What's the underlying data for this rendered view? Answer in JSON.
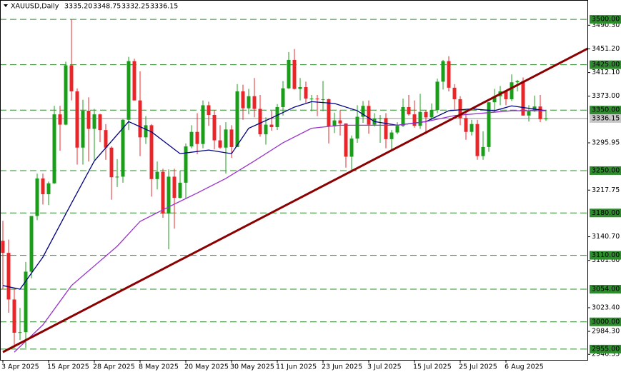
{
  "chart_data": {
    "type": "candlestick",
    "title": "XAUUSD,Daily",
    "header_values": [
      "3335.20",
      "3348.75",
      "3332.25",
      "3336.15"
    ],
    "categories": [
      "3 Apr 2025",
      null,
      null,
      null,
      null,
      null,
      null,
      null,
      "15 Apr 2025",
      null,
      null,
      null,
      null,
      null,
      null,
      null,
      "28 Apr 2025",
      null,
      null,
      null,
      null,
      null,
      null,
      null,
      "8 May 2025",
      null,
      null,
      null,
      null,
      null,
      null,
      null,
      "20 May 2025",
      null,
      null,
      null,
      null,
      null,
      null,
      null,
      "30 May 2025",
      null,
      null,
      null,
      null,
      null,
      null,
      null,
      "11 Jun 2025",
      null,
      null,
      null,
      null,
      null,
      null,
      null,
      "23 Jun 2025",
      null,
      null,
      null,
      null,
      null,
      null,
      null,
      "3 Jul 2025",
      null,
      null,
      null,
      null,
      null,
      null,
      null,
      "15 Jul 2025",
      null,
      null,
      null,
      null,
      null,
      null,
      null,
      "25 Jul 2025",
      null,
      null,
      null,
      null,
      null,
      null,
      null,
      "6 Aug 2025",
      null,
      null,
      null,
      null,
      null,
      null,
      null
    ],
    "candles": [
      [
        3134,
        3167,
        3054,
        3114
      ],
      [
        3114,
        3136,
        3015,
        3037
      ],
      [
        3037,
        3055,
        2957,
        2982
      ],
      [
        2982,
        3023,
        2970,
        2983
      ],
      [
        2983,
        3099,
        2957,
        3083
      ],
      [
        3083,
        3175,
        3072,
        3175
      ],
      [
        3175,
        3245,
        3168,
        3237
      ],
      [
        3237,
        3245,
        3194,
        3211
      ],
      [
        3211,
        3232,
        3193,
        3229
      ],
      [
        3229,
        3357,
        3228,
        3343
      ],
      [
        3343,
        3357,
        3283,
        3326
      ],
      [
        3326,
        3430,
        3325,
        3424
      ],
      [
        3424,
        3500,
        3366,
        3381
      ],
      [
        3381,
        3386,
        3260,
        3288
      ],
      [
        3288,
        3367,
        3260,
        3349
      ],
      [
        3349,
        3371,
        3265,
        3319
      ],
      [
        3319,
        3352,
        3268,
        3343
      ],
      [
        3343,
        3344,
        3297,
        3317
      ],
      [
        3317,
        3327,
        3268,
        3288
      ],
      [
        3288,
        3290,
        3202,
        3239
      ],
      [
        3239,
        3269,
        3223,
        3240
      ],
      [
        3240,
        3335,
        3230,
        3334
      ],
      [
        3334,
        3438,
        3317,
        3431
      ],
      [
        3431,
        3435,
        3366,
        3366
      ],
      [
        3366,
        3414,
        3274,
        3305
      ],
      [
        3305,
        3340,
        3294,
        3325
      ],
      [
        3325,
        3327,
        3207,
        3236
      ],
      [
        3236,
        3265,
        3219,
        3248
      ],
      [
        3248,
        3253,
        3172,
        3179
      ],
      [
        3179,
        3252,
        3120,
        3240
      ],
      [
        3240,
        3253,
        3154,
        3205
      ],
      [
        3205,
        3250,
        3204,
        3230
      ],
      [
        3230,
        3295,
        3204,
        3290
      ],
      [
        3290,
        3325,
        3287,
        3314
      ],
      [
        3314,
        3345,
        3277,
        3294
      ],
      [
        3294,
        3366,
        3287,
        3358
      ],
      [
        3358,
        3364,
        3324,
        3342
      ],
      [
        3342,
        3350,
        3285,
        3300
      ],
      [
        3300,
        3325,
        3286,
        3288
      ],
      [
        3288,
        3330,
        3245,
        3318
      ],
      [
        3318,
        3325,
        3271,
        3289
      ],
      [
        3289,
        3393,
        3289,
        3381
      ],
      [
        3381,
        3392,
        3334,
        3353
      ],
      [
        3353,
        3385,
        3343,
        3373
      ],
      [
        3373,
        3403,
        3338,
        3352
      ],
      [
        3352,
        3375,
        3306,
        3310
      ],
      [
        3310,
        3338,
        3293,
        3326
      ],
      [
        3326,
        3349,
        3316,
        3322
      ],
      [
        3322,
        3360,
        3317,
        3355
      ],
      [
        3355,
        3398,
        3341,
        3386
      ],
      [
        3386,
        3446,
        3385,
        3433
      ],
      [
        3433,
        3451,
        3384,
        3385
      ],
      [
        3385,
        3403,
        3366,
        3388
      ],
      [
        3388,
        3397,
        3362,
        3369
      ],
      [
        3369,
        3375,
        3348,
        3369
      ],
      [
        3369,
        3375,
        3340,
        3368
      ],
      [
        3368,
        3398,
        3348,
        3368
      ],
      [
        3368,
        3369,
        3295,
        3323
      ],
      [
        3323,
        3346,
        3312,
        3333
      ],
      [
        3333,
        3350,
        3308,
        3328
      ],
      [
        3328,
        3328,
        3255,
        3273
      ],
      [
        3273,
        3308,
        3247,
        3303
      ],
      [
        3303,
        3358,
        3296,
        3339
      ],
      [
        3339,
        3365,
        3329,
        3357
      ],
      [
        3357,
        3366,
        3311,
        3326
      ],
      [
        3326,
        3345,
        3323,
        3336
      ],
      [
        3336,
        3342,
        3296,
        3337
      ],
      [
        3337,
        3345,
        3287,
        3302
      ],
      [
        3302,
        3317,
        3282,
        3313
      ],
      [
        3313,
        3330,
        3310,
        3324
      ],
      [
        3324,
        3369,
        3322,
        3355
      ],
      [
        3355,
        3375,
        3341,
        3343
      ],
      [
        3343,
        3366,
        3321,
        3324
      ],
      [
        3324,
        3377,
        3319,
        3347
      ],
      [
        3347,
        3350,
        3310,
        3338
      ],
      [
        3338,
        3361,
        3332,
        3350
      ],
      [
        3350,
        3402,
        3345,
        3397
      ],
      [
        3397,
        3433,
        3384,
        3431
      ],
      [
        3431,
        3439,
        3381,
        3387
      ],
      [
        3387,
        3393,
        3351,
        3368
      ],
      [
        3368,
        3373,
        3325,
        3337
      ],
      [
        3337,
        3345,
        3301,
        3314
      ],
      [
        3314,
        3334,
        3308,
        3327
      ],
      [
        3327,
        3334,
        3268,
        3274
      ],
      [
        3274,
        3315,
        3268,
        3289
      ],
      [
        3289,
        3363,
        3281,
        3363
      ],
      [
        3363,
        3385,
        3346,
        3373
      ],
      [
        3373,
        3390,
        3358,
        3381
      ],
      [
        3381,
        3383,
        3358,
        3368
      ],
      [
        3368,
        3409,
        3365,
        3396
      ],
      [
        3396,
        3400,
        3381,
        3398
      ],
      [
        3398,
        3404,
        3341,
        3341
      ],
      [
        3341,
        3358,
        3331,
        3348
      ],
      [
        3348,
        3374,
        3347,
        3356
      ],
      [
        3356,
        3375,
        3330,
        3335
      ],
      [
        3335.2,
        3348.75,
        3332.25,
        3336.15
      ]
    ],
    "up_color": "#1a9e1a",
    "down_color": "#e8262a",
    "lines": [
      {
        "color": "#000080",
        "x": [
          0,
          3,
          7,
          12,
          16,
          22,
          26,
          31,
          36,
          40,
          43,
          47,
          51,
          54,
          58,
          62,
          65,
          69,
          74,
          78,
          82,
          86,
          89,
          95
        ],
        "values": [
          3060,
          3054,
          3107,
          3196,
          3266,
          3331,
          3314,
          3278,
          3284,
          3278,
          3320,
          3337,
          3355,
          3364,
          3361,
          3349,
          3331,
          3325,
          3331,
          3349,
          3352,
          3349,
          3357,
          3349
        ]
      },
      {
        "color": "#9932cc",
        "x": [
          2,
          7,
          12,
          20,
          24,
          29,
          34,
          39,
          44,
          49,
          54,
          59,
          64,
          69,
          74,
          79,
          84,
          89,
          95
        ],
        "values": [
          2950,
          2995,
          3060,
          3125,
          3166,
          3190,
          3213,
          3237,
          3266,
          3296,
          3320,
          3325,
          3325,
          3325,
          3331,
          3341,
          3345,
          3349,
          3349
        ]
      }
    ],
    "trendline": {
      "color": "#8b0000",
      "x": [
        0,
        105
      ],
      "values": [
        2950,
        3465
      ]
    },
    "levels": [
      {
        "value": 3500,
        "label": "3500.00"
      },
      {
        "value": 3425,
        "label": "3425.00"
      },
      {
        "value": 3350,
        "label": "3350.00"
      },
      {
        "value": 3250,
        "label": "3250.00"
      },
      {
        "value": 3180,
        "label": "3180.00"
      },
      {
        "value": 3110,
        "label": "3110.00"
      },
      {
        "value": 3054,
        "label": "3054.00"
      },
      {
        "value": 3000,
        "label": "3000.00"
      },
      {
        "value": 2955,
        "label": "2955.00"
      }
    ],
    "level_color": "#2e8b2e",
    "last_price": 3336.15,
    "ylim": [
      2936,
      3532
    ],
    "yticks": [
      {
        "value": 3490.3,
        "label": "3490.30"
      },
      {
        "value": 3451.2,
        "label": "3451.20"
      },
      {
        "value": 3412.1,
        "label": "3412.10"
      },
      {
        "value": 3373,
        "label": "3373.00"
      },
      {
        "value": 3295.95,
        "label": "3295.95"
      },
      {
        "value": 3217.75,
        "label": "3217.75"
      },
      {
        "value": 3140.7,
        "label": "3140.70"
      },
      {
        "value": 3101.6,
        "label": "3101.60"
      },
      {
        "value": 3023.4,
        "label": "3023.40"
      },
      {
        "value": 2984.3,
        "label": "2984.30"
      },
      {
        "value": 2946.35,
        "label": "2946.35"
      }
    ]
  }
}
